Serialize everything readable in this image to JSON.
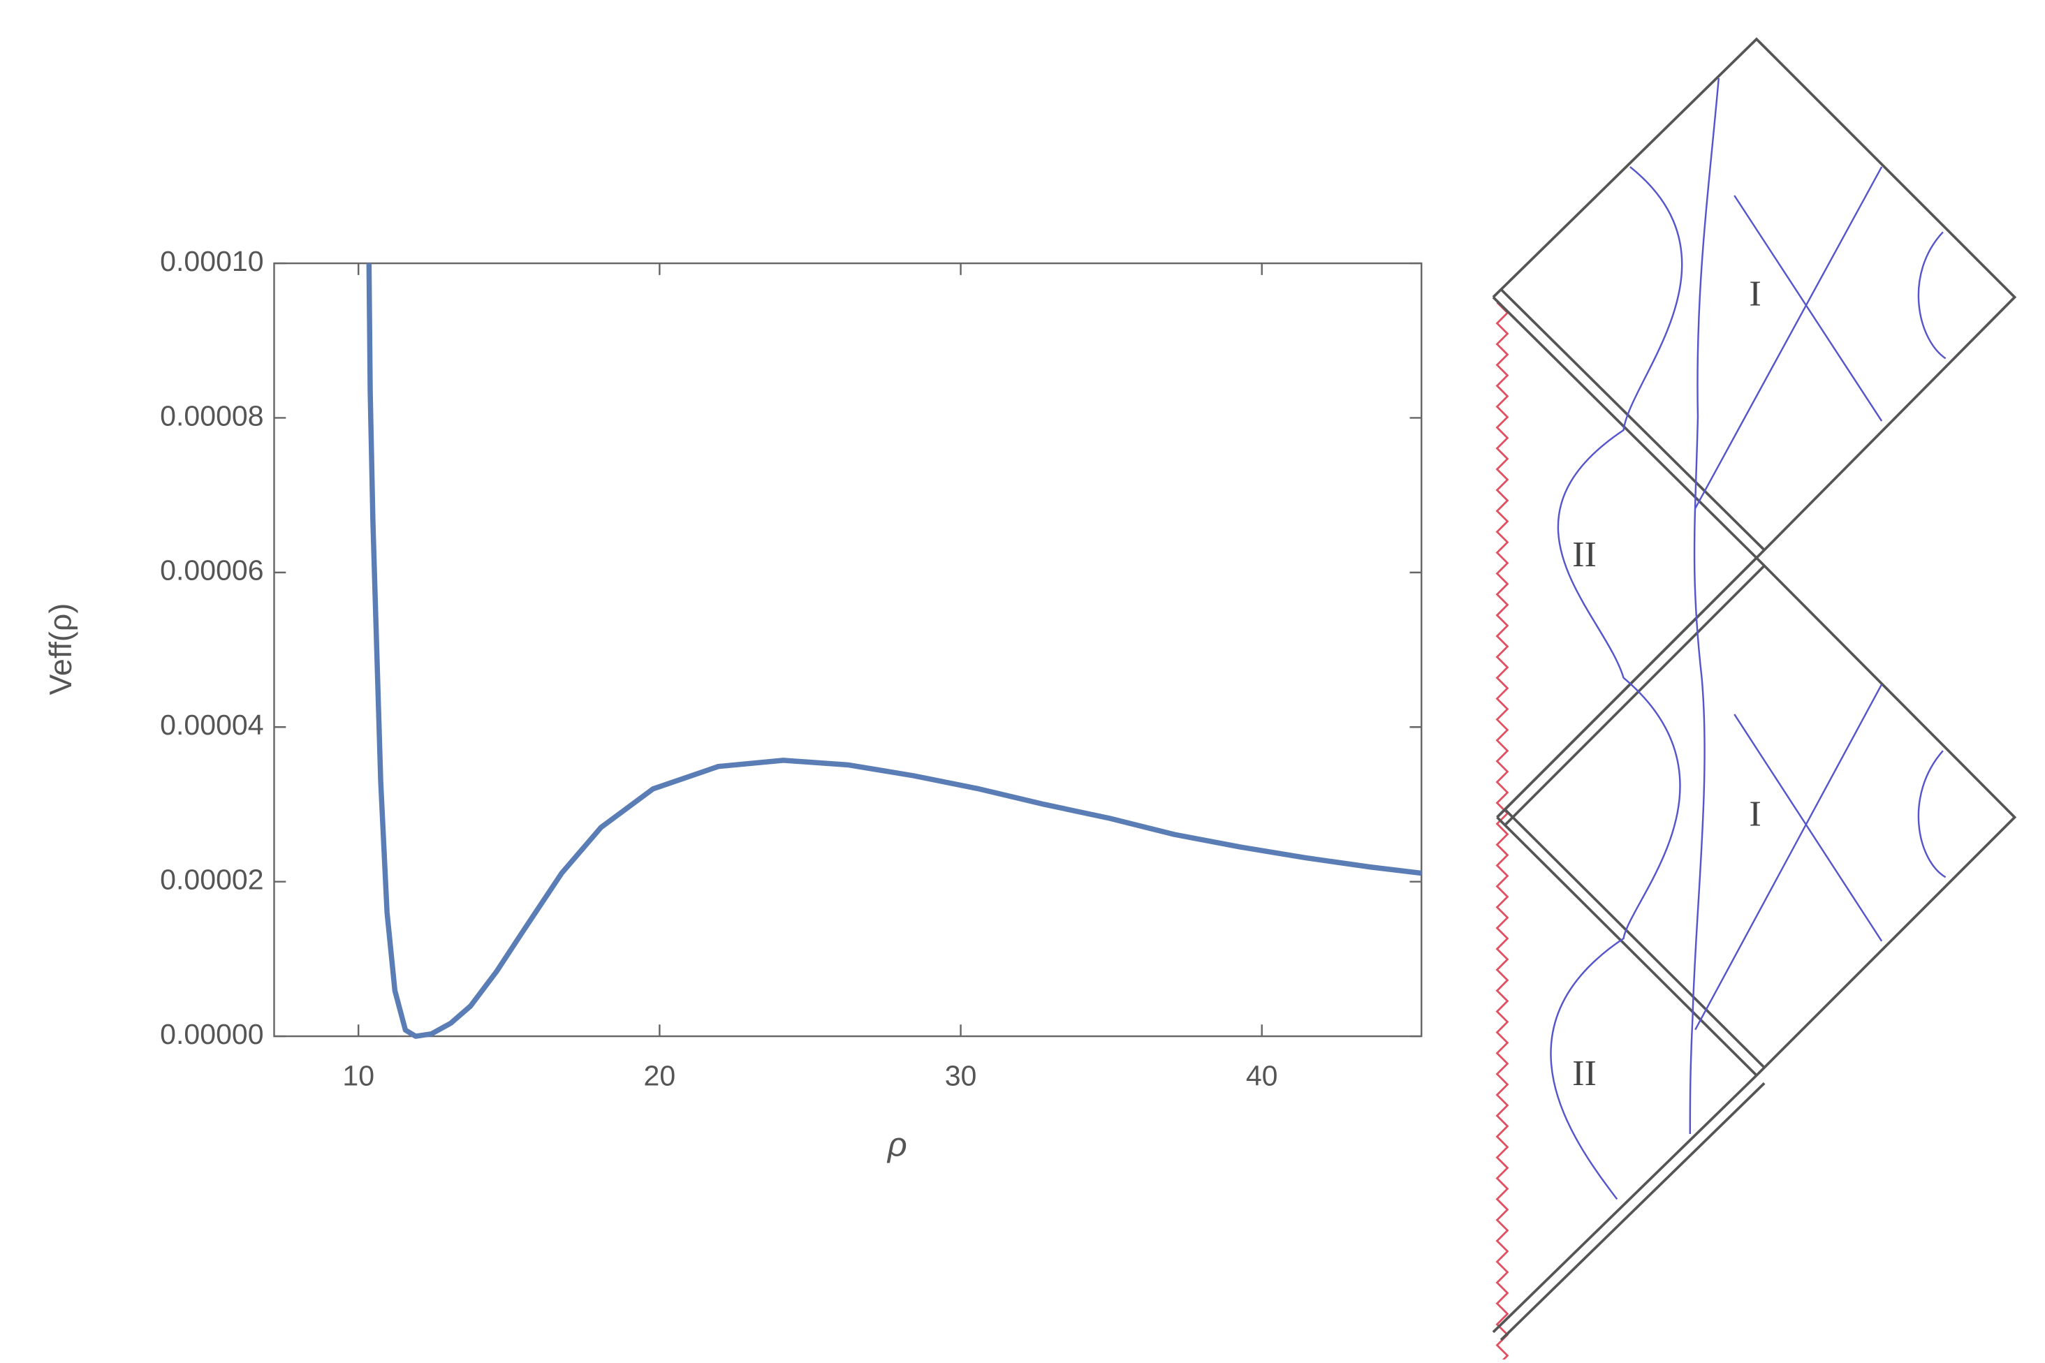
{
  "chart_data": {
    "type": "line",
    "xlabel": "ρ",
    "ylabel": "Veff(ρ)",
    "x": [
      10.35,
      10.39,
      10.48,
      10.61,
      10.74,
      10.95,
      11.21,
      11.56,
      11.9,
      12.42,
      13.07,
      13.72,
      14.59,
      15.45,
      16.75,
      18.05,
      19.78,
      21.95,
      24.11,
      26.28,
      28.44,
      30.61,
      32.77,
      34.94,
      37.1,
      39.26,
      41.43,
      43.59,
      45.3
    ],
    "values": [
      0.0001,
      8.35e-05,
      6.66e-05,
      4.97e-05,
      3.29e-05,
      1.6e-05,
      5.9e-06,
      8e-07,
      0,
      3e-07,
      1.7e-06,
      3.9e-06,
      8.4e-06,
      1.35e-05,
      2.11e-05,
      2.7e-05,
      3.2e-05,
      3.49e-05,
      3.57e-05,
      3.51e-05,
      3.37e-05,
      3.2e-05,
      3e-05,
      2.82e-05,
      2.61e-05,
      2.45e-05,
      2.31e-05,
      2.19e-05,
      2.11e-05
    ],
    "color": "#5a7db5",
    "xlim": [
      7.2,
      45.3
    ],
    "xticks": [
      10,
      20,
      30,
      40
    ],
    "ylim": [
      0,
      0.0001
    ],
    "yticks": [
      {
        "value": 0,
        "label": "0.00000"
      },
      {
        "value": 2e-05,
        "label": "0.00002"
      },
      {
        "value": 4e-05,
        "label": "0.00004"
      },
      {
        "value": 6e-05,
        "label": "0.00006"
      },
      {
        "value": 8e-05,
        "label": "0.00008"
      },
      {
        "value": 0.0001,
        "label": "0.00010"
      }
    ]
  },
  "diagram": {
    "labels": [
      "I",
      "II",
      "I",
      "II"
    ]
  }
}
